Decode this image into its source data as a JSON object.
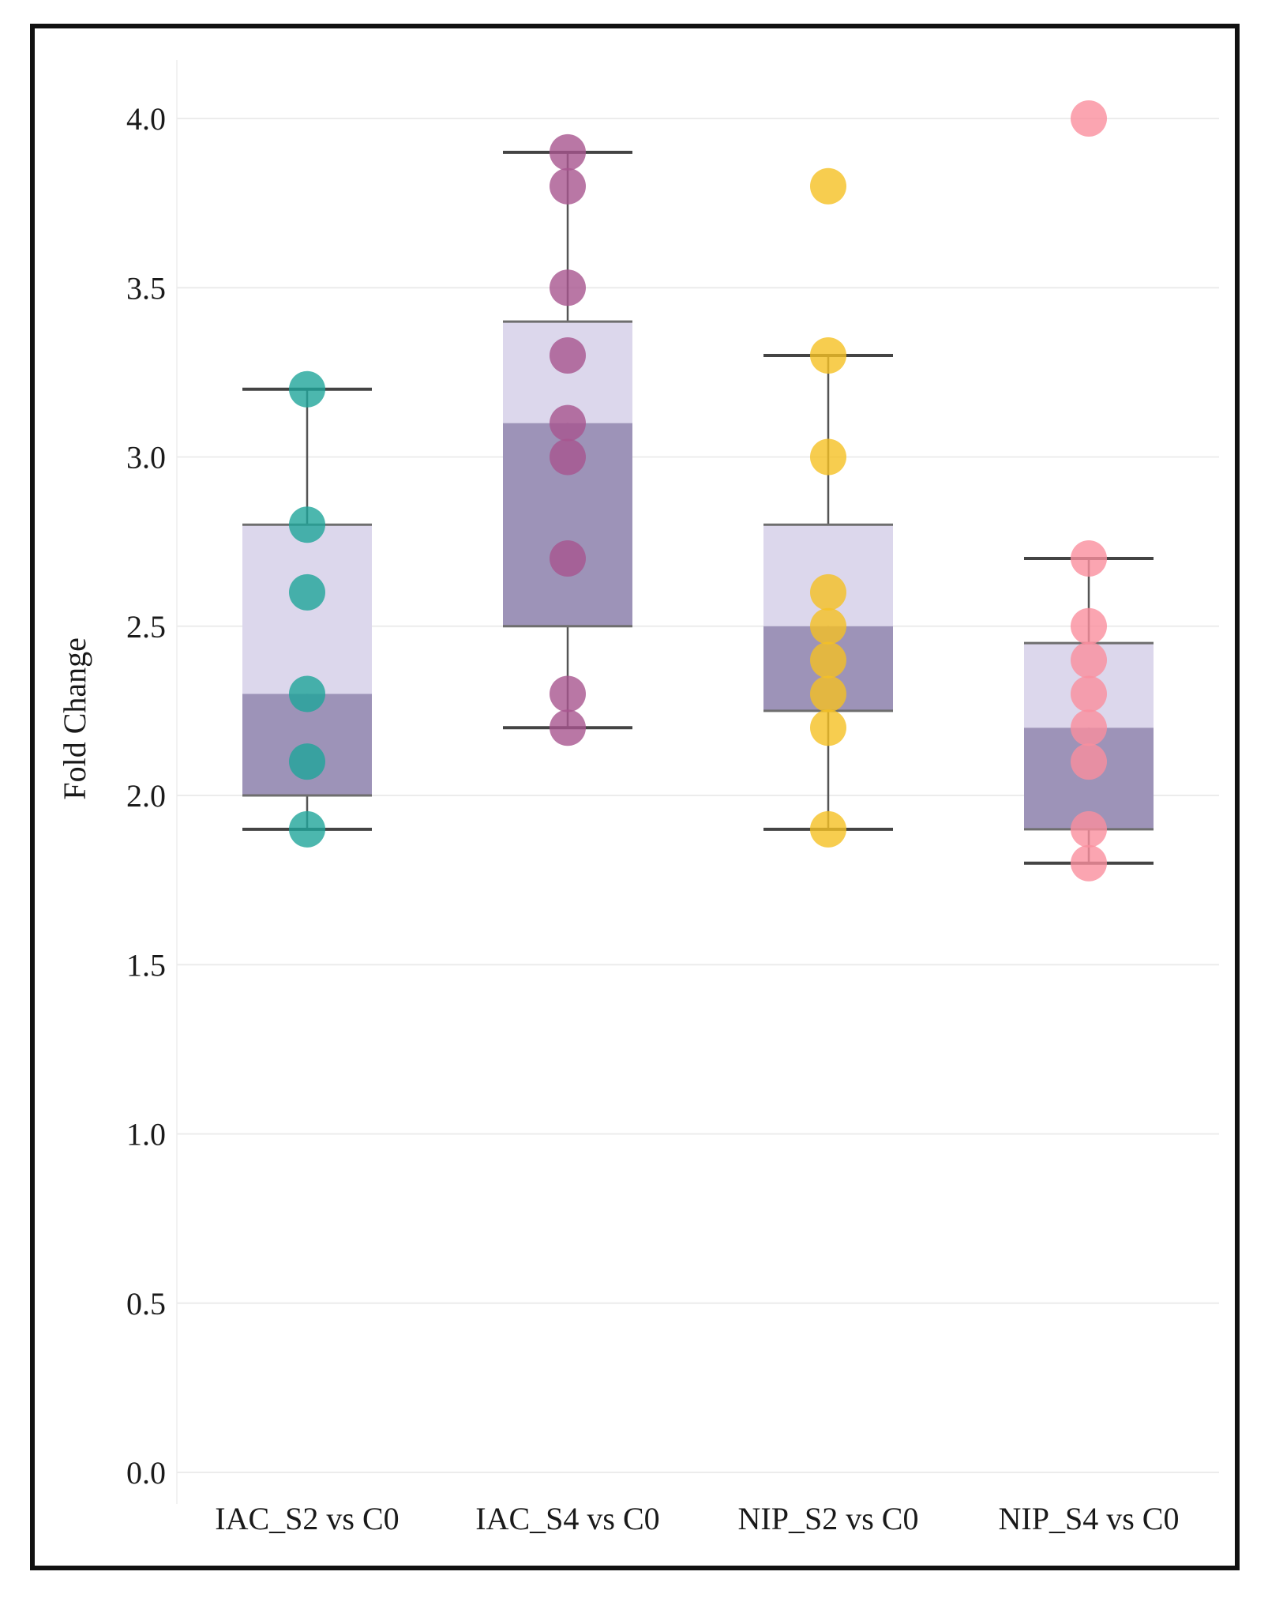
{
  "chart_data": {
    "type": "box",
    "title": "",
    "xlabel": "",
    "ylabel": "Fold Change",
    "ylim": [
      0,
      4.0
    ],
    "yticks": [
      0.0,
      0.5,
      1.0,
      1.5,
      2.0,
      2.5,
      3.0,
      3.5,
      4.0
    ],
    "ytick_labels": [
      "0.0",
      "0.5",
      "1.0",
      "1.5",
      "2.0",
      "2.5",
      "3.0",
      "3.5",
      "4.0"
    ],
    "grid": true,
    "categories": [
      "IAC_S2 vs C0",
      "IAC_S4 vs C0",
      "NIP_S2 vs C0",
      "NIP_S4 vs C0"
    ],
    "series": [
      {
        "name": "IAC_S2 vs C0",
        "color": "#1fa59a",
        "whisker_low": 1.9,
        "q1": 2.0,
        "median": 2.3,
        "q3": 2.8,
        "whisker_high": 3.2,
        "points": [
          3.2,
          2.8,
          2.6,
          2.3,
          2.1,
          1.9
        ]
      },
      {
        "name": "IAC_S4 vs C0",
        "color": "#a8558e",
        "whisker_low": 2.2,
        "q1": 2.5,
        "median": 3.1,
        "q3": 3.4,
        "whisker_high": 3.9,
        "points": [
          3.9,
          3.8,
          3.5,
          3.3,
          3.1,
          3.0,
          2.7,
          2.3,
          2.2
        ]
      },
      {
        "name": "NIP_S2 vs C0",
        "color": "#f5c023",
        "whisker_low": 1.9,
        "q1": 2.25,
        "median": 2.5,
        "q3": 2.8,
        "whisker_high": 3.3,
        "points": [
          3.8,
          3.3,
          3.0,
          2.6,
          2.5,
          2.4,
          2.3,
          2.2,
          1.9
        ]
      },
      {
        "name": "NIP_S4 vs C0",
        "color": "#fa8e9e",
        "whisker_low": 1.8,
        "q1": 1.9,
        "median": 2.2,
        "q3": 2.45,
        "whisker_high": 2.7,
        "points": [
          4.0,
          2.7,
          2.5,
          2.4,
          2.3,
          2.2,
          2.1,
          1.9,
          1.8
        ]
      }
    ]
  }
}
